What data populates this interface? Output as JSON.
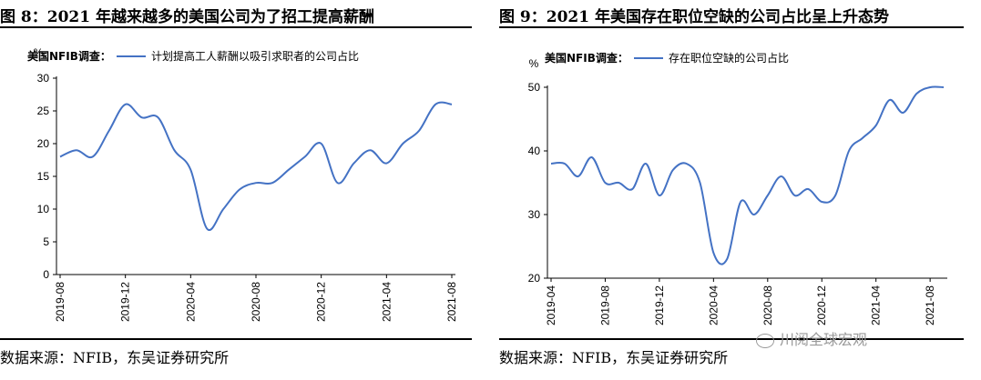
{
  "figures": [
    {
      "title": "图 8：2021 年越来越多的美国公司为了招工提高薪酬",
      "source": "数据来源：NFIB，东吴证券研究所",
      "chart_data": {
        "type": "line",
        "unit_label": "%",
        "legend_prefix": "美国NFIB调查：",
        "ylim": [
          0,
          30
        ],
        "yticks": [
          "0",
          "5",
          "10",
          "15",
          "20",
          "25",
          "30"
        ],
        "xticks": [
          "2019-08",
          "2019-12",
          "2020-04",
          "2020-08",
          "2020-12",
          "2021-04",
          "2021-08"
        ],
        "x": [
          "2019-08",
          "2019-09",
          "2019-10",
          "2019-11",
          "2019-12",
          "2020-01",
          "2020-02",
          "2020-03",
          "2020-04",
          "2020-05",
          "2020-06",
          "2020-07",
          "2020-08",
          "2020-09",
          "2020-10",
          "2020-11",
          "2020-12",
          "2021-01",
          "2021-02",
          "2021-03",
          "2021-04",
          "2021-05",
          "2021-06",
          "2021-07",
          "2021-08"
        ],
        "series": [
          {
            "name": "计划提高工人薪酬以吸引求职者的公司占比",
            "color": "#4472C4",
            "values": [
              18,
              19,
              18,
              22,
              26,
              24,
              24,
              19,
              16,
              7,
              10,
              13,
              14,
              14,
              16,
              18,
              20,
              14,
              17,
              19,
              17,
              20,
              22,
              26,
              26
            ]
          }
        ],
        "grid": false,
        "legend_position": "top"
      }
    },
    {
      "title": "图 9：2021 年美国存在职位空缺的公司占比呈上升态势",
      "source": "数据来源：NFIB，东吴证券研究所",
      "chart_data": {
        "type": "line",
        "unit_label": "%",
        "legend_prefix": "美国NFIB调查：",
        "ylim": [
          20,
          50
        ],
        "yticks": [
          "20",
          "30",
          "40",
          "50"
        ],
        "xticks": [
          "2019-04",
          "2019-08",
          "2019-12",
          "2020-04",
          "2020-08",
          "2020-12",
          "2021-04",
          "2021-08"
        ],
        "x": [
          "2019-04",
          "2019-05",
          "2019-06",
          "2019-07",
          "2019-08",
          "2019-09",
          "2019-10",
          "2019-11",
          "2019-12",
          "2020-01",
          "2020-02",
          "2020-03",
          "2020-04",
          "2020-05",
          "2020-06",
          "2020-07",
          "2020-08",
          "2020-09",
          "2020-10",
          "2020-11",
          "2020-12",
          "2021-01",
          "2021-02",
          "2021-03",
          "2021-04",
          "2021-05",
          "2021-06",
          "2021-07",
          "2021-08",
          "2021-09"
        ],
        "series": [
          {
            "name": "存在职位空缺的公司占比",
            "color": "#4472C4",
            "values": [
              38,
              38,
              36,
              39,
              35,
              35,
              34,
              38,
              33,
              37,
              38,
              35,
              24,
              23,
              32,
              30,
              33,
              36,
              33,
              34,
              32,
              33,
              40,
              42,
              44,
              48,
              46,
              49,
              50,
              50
            ]
          }
        ],
        "grid": false,
        "legend_position": "top"
      }
    }
  ],
  "watermark": "川阅全球宏观"
}
